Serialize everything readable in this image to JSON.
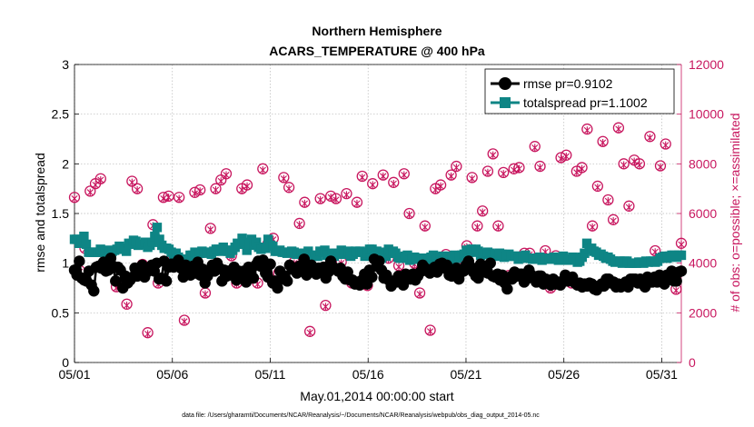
{
  "chart_data": {
    "type": "line",
    "title": "Northern Hemisphere",
    "subtitle": "ACARS_TEMPERATURE @ 400 hPa",
    "xlabel": "May.01,2014 00:00:00 start",
    "ylabel": "rmse and totalspread",
    "ylabel_right": "# of obs: o=possible; ×=assimilated",
    "footnote": "data file: /Users/gharamti/Documents/NCAR/Reanalysis/~/Documents/NCAR/Reanalysis/webpub/obs_diag_output_2014-05.nc",
    "xlim": [
      0,
      31
    ],
    "ylim": [
      0,
      3
    ],
    "ylim_right": [
      0,
      12000
    ],
    "x_ticks": [
      0,
      5,
      10,
      15,
      20,
      25,
      30
    ],
    "x_tick_labels": [
      "05/01",
      "05/06",
      "05/11",
      "05/16",
      "05/21",
      "05/26",
      "05/31"
    ],
    "y_ticks": [
      0,
      0.5,
      1,
      1.5,
      2,
      2.5,
      3
    ],
    "y_tick_labels": [
      "0",
      "0.5",
      "1",
      "1.5",
      "2",
      "2.5",
      "3"
    ],
    "y_right_ticks": [
      0,
      2000,
      4000,
      6000,
      8000,
      10000,
      12000
    ],
    "y_right_tick_labels": [
      "0",
      "2000",
      "4000",
      "6000",
      "8000",
      "10000",
      "12000"
    ],
    "legend_position": "top-right",
    "series": [
      {
        "name": "rmse pr=0.9102",
        "axis": "left",
        "color": "#000000",
        "marker": "circle",
        "values": [
          0.93,
          0.88,
          1.02,
          0.85,
          0.83,
          0.82,
          0.92,
          0.78,
          0.72,
          0.96,
          0.97,
          0.95,
          1.01,
          0.92,
          0.93,
          1.05,
          0.97,
          0.82,
          0.96,
          0.93,
          0.75,
          0.87,
          0.8,
          0.83,
          0.86,
          0.95,
          0.87,
          0.88,
          0.98,
          0.86,
          0.91,
          0.94,
          0.98,
          0.92,
          1.0,
          0.84,
          0.85,
          1.02,
          0.82,
          0.96,
          0.99,
          0.96,
          1.0,
          1.03,
          0.95,
          0.86,
          0.98,
          0.95,
          0.88,
          0.97,
          0.9,
          1.01,
          0.88,
          0.94,
          0.8,
          0.87,
          0.91,
          0.98,
          0.92,
          1.0,
          0.95,
          0.82,
          0.93,
          0.87,
          0.88,
          0.93,
          0.96,
          0.83,
          0.92,
          0.87,
          0.92,
          0.81,
          0.96,
          0.91,
          0.85,
          0.98,
          1.02,
          0.97,
          1.03,
          0.9,
          0.86,
          0.99,
          0.8,
          0.82,
          0.75,
          0.92,
          0.84,
          0.87,
          0.82,
          0.98,
          0.94,
          0.93,
          0.9,
          0.97,
          0.96,
          1.04,
          0.88,
          0.95,
          0.98,
          0.93,
          0.89,
          0.95,
          0.94,
          0.96,
          0.85,
          0.91,
          1.02,
          0.96,
          0.94,
          0.92,
          0.95,
          0.87,
          0.84,
          0.91,
          0.83,
          0.83,
          0.79,
          0.81,
          0.78,
          0.83,
          0.89,
          0.79,
          0.93,
          0.86,
          1.04,
          0.97,
          1.02,
          0.93,
          0.85,
          0.88,
          0.83,
          0.77,
          0.82,
          0.81,
          0.87,
          0.82,
          0.78,
          0.89,
          0.85,
          0.84,
          0.89,
          0.83,
          0.87,
          0.91,
          0.98,
          0.95,
          0.92,
          0.9,
          0.94,
          0.96,
          0.91,
          0.99,
          1.0,
          0.95,
          0.98,
          0.88,
          0.87,
          0.91,
          0.95,
          0.84,
          0.91,
          0.92,
          0.98,
          1.02,
          0.96,
          0.91,
          0.87,
          0.85,
          0.99,
          0.93,
          0.91,
          0.9,
          1.0,
          0.87,
          0.86,
          0.89,
          0.83,
          0.88,
          0.8,
          0.74,
          0.86,
          0.84,
          0.91,
          0.87,
          0.89,
          0.89,
          0.81,
          0.84,
          0.93,
          0.88,
          0.85,
          0.81,
          0.87,
          0.87,
          0.79,
          0.84,
          0.82,
          0.78,
          0.84,
          0.79,
          0.81,
          0.78,
          0.82,
          0.88,
          0.82,
          0.85,
          0.86,
          0.8,
          0.78,
          0.8,
          0.76,
          0.79,
          0.77,
          0.8,
          0.79,
          0.74,
          0.73,
          0.77,
          0.79,
          0.77,
          0.84,
          0.84,
          0.8,
          0.81,
          0.76,
          0.79,
          0.76,
          0.78,
          0.81,
          0.76,
          0.84,
          0.84,
          0.84,
          0.8,
          0.84,
          0.79,
          0.76,
          0.86,
          0.81,
          0.81,
          0.86,
          0.81,
          0.88,
          0.86,
          0.79,
          0.88,
          0.87,
          0.92,
          0.82,
          0.82,
          0.91,
          0.92
        ]
      },
      {
        "name": "totalspread pr=1.1002",
        "axis": "left",
        "color": "#0e8585",
        "marker": "square",
        "values": [
          1.24,
          1.24,
          1.2,
          1.21,
          1.27,
          1.19,
          1.11,
          1.11,
          1.11,
          1.11,
          1.11,
          1.14,
          1.11,
          1.13,
          1.09,
          1.12,
          1.12,
          1.13,
          1.14,
          1.17,
          1.14,
          1.15,
          1.12,
          1.2,
          1.19,
          1.23,
          1.22,
          1.18,
          1.19,
          1.19,
          1.21,
          1.16,
          1.18,
          1.21,
          1.27,
          1.36,
          1.24,
          1.18,
          1.15,
          1.15,
          1.14,
          1.11,
          1.09,
          1.1,
          1.06,
          1.04,
          1.03,
          1.04,
          1.04,
          1.08,
          1.08,
          1.11,
          1.08,
          1.1,
          1.12,
          1.1,
          1.11,
          1.11,
          1.09,
          1.12,
          1.14,
          1.14,
          1.12,
          1.16,
          1.13,
          1.12,
          1.1,
          1.13,
          1.16,
          1.2,
          1.19,
          1.25,
          1.21,
          1.13,
          1.19,
          1.24,
          1.18,
          1.21,
          1.16,
          1.14,
          1.15,
          1.15,
          1.24,
          1.18,
          1.17,
          1.12,
          1.12,
          1.13,
          1.11,
          1.11,
          1.1,
          1.11,
          1.12,
          1.11,
          1.09,
          1.09,
          1.1,
          1.1,
          1.08,
          1.12,
          1.08,
          1.08,
          1.07,
          1.07,
          1.12,
          1.11,
          1.13,
          1.08,
          1.08,
          1.1,
          1.07,
          1.1,
          1.09,
          1.13,
          1.09,
          1.11,
          1.12,
          1.07,
          1.09,
          1.12,
          1.11,
          1.12,
          1.11,
          1.07,
          1.1,
          1.14,
          1.14,
          1.09,
          1.12,
          1.11,
          1.05,
          1.09,
          1.07,
          1.14,
          1.1,
          1.12,
          1.1,
          1.06,
          1.05,
          1.05,
          1.07,
          1.08,
          1.03,
          1.04,
          1.06,
          1.04,
          1.04,
          1.04,
          1.05,
          1.03,
          1.02,
          1.06,
          1.08,
          1.03,
          1.04,
          1.06,
          1.07,
          1.06,
          1.07,
          1.03,
          1.06,
          1.08,
          1.05,
          1.07,
          1.08,
          1.09,
          1.13,
          1.11,
          1.14,
          1.11,
          1.14,
          1.12,
          1.08,
          1.09,
          1.1,
          1.11,
          1.1,
          1.08,
          1.09,
          1.07,
          1.1,
          1.09,
          1.06,
          1.07,
          1.09,
          1.07,
          1.07,
          1.07,
          1.04,
          1.07,
          1.06,
          1.08,
          1.05,
          1.05,
          1.04,
          1.05,
          1.05,
          1.06,
          1.03,
          1.05,
          1.05,
          1.04,
          1.05,
          1.06,
          1.04,
          1.03,
          1.05,
          1.07,
          1.04,
          1.03,
          1.04,
          1.06,
          1.05,
          1.01,
          1.02,
          1.06,
          1.1,
          1.2,
          1.14,
          1.15,
          1.12,
          1.11,
          1.08,
          1.09,
          1.07,
          1.05,
          1.06,
          1.04,
          1.02,
          1.01,
          1.02,
          1.02,
          1.0,
          1.02,
          1.02,
          1.0,
          1.0,
          1.0,
          1.0,
          1.01,
          1.01,
          1.0,
          1.02,
          1.01,
          1.02,
          1.02,
          1.01,
          1.02,
          1.05,
          1.06,
          1.07,
          1.05,
          1.07,
          1.08,
          1.08,
          1.06,
          1.08,
          1.08
        ]
      },
      {
        "name": "# of obs: possible",
        "axis": "right",
        "color": "#c8175f",
        "marker": "circle-open",
        "values": [
          6650,
          3700,
          4600,
          6900,
          7200,
          7400,
          4200,
          4400,
          3050,
          3200,
          2350,
          7300,
          7000,
          3950,
          1200,
          5550,
          3200,
          6650,
          6700,
          4200,
          6650,
          1700,
          3900,
          6850,
          6950,
          2800,
          5400,
          7000,
          7350,
          7600,
          4300,
          3200,
          7000,
          7150,
          4800,
          3200,
          7800,
          4800,
          5000,
          3600,
          7450,
          7050,
          4050,
          5600,
          6450,
          1250,
          3700,
          6600,
          2300,
          6700,
          6600,
          4050,
          6800,
          3200,
          6450,
          7500,
          3100,
          7200,
          4100,
          7550,
          4200,
          7250,
          3900,
          7600,
          6000,
          4000,
          2800,
          5500,
          1300,
          7000,
          7150,
          4350,
          7550,
          7900,
          4000,
          4700,
          7450,
          5500,
          6100,
          7700,
          8400,
          5500,
          7650,
          3500,
          7800,
          7850,
          4400,
          4400,
          8700,
          7900,
          4500,
          3000,
          4300,
          8250,
          8350,
          3200,
          7700,
          7850,
          9400,
          5500,
          7100,
          8900,
          6550,
          5750,
          9450,
          8000,
          6300,
          8150,
          8000,
          3100,
          9100,
          4500,
          7920,
          8800,
          3500,
          2950,
          4800
        ]
      },
      {
        "name": "# of obs: assimilated",
        "axis": "right",
        "color": "#c8175f",
        "marker": "x",
        "values": [
          6600,
          3650,
          4550,
          6850,
          7150,
          7350,
          4150,
          4350,
          3000,
          3150,
          2300,
          7250,
          6950,
          3900,
          1150,
          5500,
          3150,
          6600,
          6650,
          4150,
          6600,
          1650,
          3850,
          6800,
          6900,
          2750,
          5350,
          6950,
          7300,
          7550,
          4250,
          3150,
          6950,
          7100,
          4750,
          3150,
          7750,
          4750,
          4950,
          3550,
          7400,
          7000,
          4000,
          5550,
          6400,
          1200,
          3650,
          6550,
          2250,
          6650,
          6550,
          4000,
          6750,
          3150,
          6400,
          7450,
          3050,
          7150,
          4050,
          7500,
          4150,
          7200,
          3850,
          7550,
          5950,
          3950,
          2750,
          5450,
          1250,
          6950,
          7100,
          4300,
          7500,
          7850,
          3950,
          4650,
          7400,
          5450,
          6050,
          7650,
          8350,
          5450,
          7600,
          3450,
          7750,
          7800,
          4350,
          4350,
          8650,
          7850,
          4450,
          2950,
          4250,
          8200,
          8300,
          3150,
          7650,
          7800,
          9350,
          5450,
          7050,
          8850,
          6500,
          5700,
          9400,
          7950,
          6250,
          8100,
          7950,
          3050,
          9050,
          4450,
          7870,
          8750,
          3450,
          2900,
          4750
        ]
      }
    ]
  }
}
